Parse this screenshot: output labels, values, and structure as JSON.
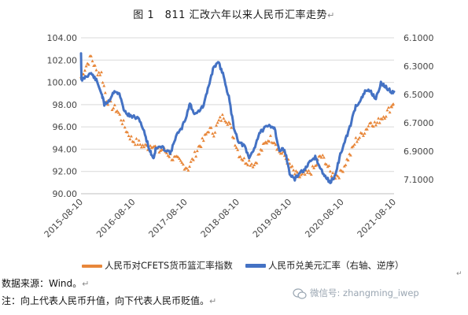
{
  "title": "图 1　811 汇改六年以来人民币汇率走势",
  "title_mark": "↵",
  "source_label": "数据来源：Wind。",
  "note_label": "注：向上代表人民币升值，向下代表人民币贬值。",
  "line_mark": "↵",
  "watermark": "微信号: zhangming_iwep",
  "frame_mark": "↵",
  "colors": {
    "orange": "#E8873A",
    "blue": "#4472C4",
    "grid": "#d9d9d9",
    "axis_text": "#444444"
  },
  "chart_data": {
    "type": "line",
    "title": "图 1　811 汇改六年以来人民币汇率走势",
    "x_ticks": [
      "2015-08-10",
      "2016-08-10",
      "2017-08-10",
      "2018-08-10",
      "2019-08-10",
      "2020-08-10",
      "2021-08-10"
    ],
    "x_range": [
      "2015-08-10",
      "2021-08-10"
    ],
    "y_left": {
      "min": 90,
      "max": 104,
      "ticks": [
        "90.00",
        "92.00",
        "94.00",
        "96.00",
        "98.00",
        "100.00",
        "102.00",
        "104.00"
      ]
    },
    "y_right": {
      "min": 6.1,
      "max": 7.2,
      "inverted": true,
      "ticks": [
        "6.1000",
        "6.3000",
        "6.5000",
        "6.7000",
        "6.9000",
        "7.1000"
      ]
    },
    "series": [
      {
        "name": "人民币对CFETS货币篮汇率指数",
        "axis": "left",
        "style": "markers",
        "color": "#E8873A",
        "x": [
          "2015-08-10",
          "2015-09-15",
          "2015-10-20",
          "2015-11-25",
          "2015-12-31",
          "2016-02-05",
          "2016-03-15",
          "2016-04-20",
          "2016-05-25",
          "2016-06-30",
          "2016-08-05",
          "2016-09-10",
          "2016-10-15",
          "2016-11-20",
          "2016-12-25",
          "2017-01-30",
          "2017-03-05",
          "2017-04-10",
          "2017-05-15",
          "2017-06-20",
          "2017-07-25",
          "2017-08-30",
          "2017-10-05",
          "2017-11-10",
          "2017-12-15",
          "2018-01-20",
          "2018-02-25",
          "2018-04-01",
          "2018-05-05",
          "2018-06-10",
          "2018-07-15",
          "2018-08-20",
          "2018-09-25",
          "2018-10-30",
          "2018-12-05",
          "2019-01-10",
          "2019-02-15",
          "2019-03-20",
          "2019-04-25",
          "2019-05-30",
          "2019-07-05",
          "2019-08-10",
          "2019-09-15",
          "2019-10-20",
          "2019-11-25",
          "2019-12-30",
          "2020-02-05",
          "2020-03-10",
          "2020-04-15",
          "2020-05-20",
          "2020-06-25",
          "2020-07-30",
          "2020-09-05",
          "2020-10-10",
          "2020-11-15",
          "2020-12-20",
          "2021-01-25",
          "2021-03-01",
          "2021-04-05",
          "2021-05-10",
          "2021-06-15",
          "2021-07-20",
          "2021-08-10"
        ],
        "y": [
          100.5,
          101.5,
          102.3,
          101.0,
          100.8,
          98.5,
          97.8,
          97.5,
          96.5,
          95.5,
          94.8,
          94.6,
          94.3,
          94.2,
          94.5,
          93.8,
          94.0,
          93.6,
          93.2,
          93.0,
          92.6,
          92.3,
          93.2,
          94.2,
          94.8,
          95.8,
          95.5,
          96.5,
          97.0,
          96.4,
          95.0,
          93.6,
          93.0,
          92.9,
          92.6,
          93.6,
          94.4,
          95.0,
          94.8,
          93.8,
          93.4,
          92.6,
          91.8,
          91.5,
          91.7,
          91.9,
          92.4,
          93.4,
          93.0,
          91.9,
          91.6,
          91.8,
          92.8,
          93.6,
          94.8,
          95.2,
          95.8,
          96.5,
          96.2,
          96.8,
          97.2,
          97.8,
          98.4
        ]
      },
      {
        "name": "人民币兑美元汇率（右轴、逆序）",
        "axis": "right",
        "style": "line",
        "color": "#4472C4",
        "x": [
          "2015-08-10",
          "2015-08-13",
          "2015-09-15",
          "2015-10-20",
          "2015-11-25",
          "2015-12-31",
          "2016-01-20",
          "2016-02-25",
          "2016-03-31",
          "2016-05-05",
          "2016-06-10",
          "2016-07-15",
          "2016-08-20",
          "2016-09-25",
          "2016-10-30",
          "2016-12-05",
          "2016-12-30",
          "2017-01-15",
          "2017-02-20",
          "2017-03-25",
          "2017-05-01",
          "2017-06-05",
          "2017-07-10",
          "2017-08-15",
          "2017-09-10",
          "2017-10-05",
          "2017-11-10",
          "2017-12-15",
          "2018-01-20",
          "2018-02-25",
          "2018-04-01",
          "2018-05-05",
          "2018-06-10",
          "2018-07-15",
          "2018-08-20",
          "2018-09-25",
          "2018-10-30",
          "2018-12-05",
          "2019-01-10",
          "2019-02-15",
          "2019-03-20",
          "2019-04-25",
          "2019-05-30",
          "2019-07-05",
          "2019-08-10",
          "2019-09-15",
          "2019-10-20",
          "2019-11-25",
          "2019-12-30",
          "2020-02-05",
          "2020-03-10",
          "2020-04-15",
          "2020-05-20",
          "2020-06-25",
          "2020-07-30",
          "2020-09-05",
          "2020-10-10",
          "2020-11-15",
          "2020-12-20",
          "2021-01-25",
          "2021-03-01",
          "2021-04-05",
          "2021-05-10",
          "2021-06-15",
          "2021-07-20",
          "2021-08-10"
        ],
        "y": [
          6.21,
          6.4,
          6.37,
          6.35,
          6.4,
          6.49,
          6.57,
          6.54,
          6.47,
          6.5,
          6.62,
          6.65,
          6.66,
          6.68,
          6.78,
          6.9,
          6.95,
          6.88,
          6.87,
          6.89,
          6.91,
          6.79,
          6.75,
          6.66,
          6.56,
          6.63,
          6.62,
          6.58,
          6.44,
          6.3,
          6.28,
          6.37,
          6.52,
          6.73,
          6.84,
          6.86,
          6.95,
          6.88,
          6.77,
          6.74,
          6.72,
          6.73,
          6.9,
          6.88,
          7.06,
          7.1,
          7.05,
          7.03,
          6.98,
          6.94,
          7.02,
          7.08,
          7.12,
          7.07,
          6.92,
          6.82,
          6.71,
          6.58,
          6.54,
          6.47,
          6.48,
          6.53,
          6.42,
          6.45,
          6.48,
          6.48
        ]
      }
    ]
  }
}
